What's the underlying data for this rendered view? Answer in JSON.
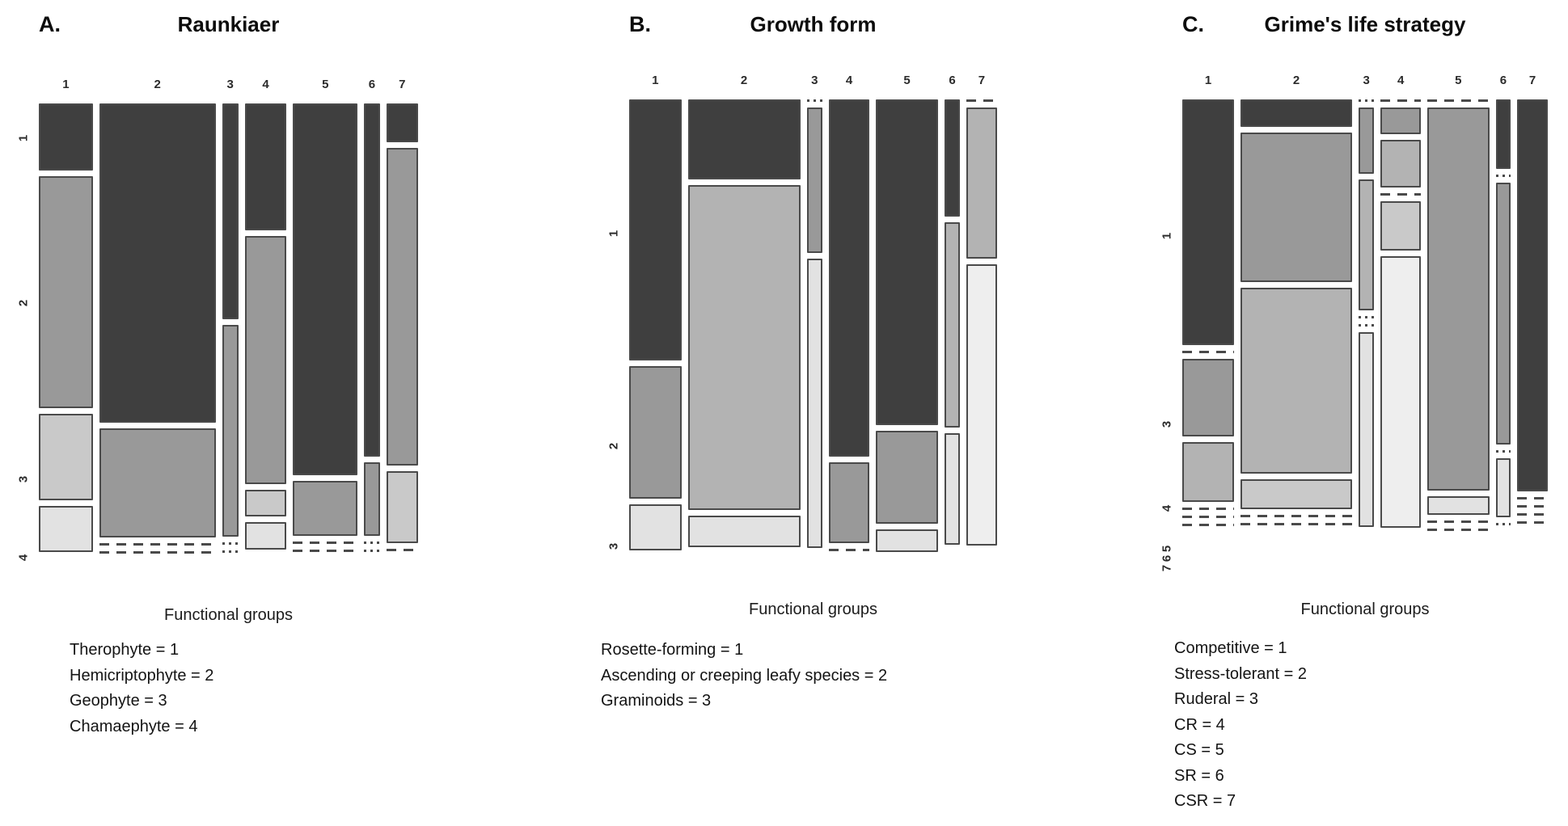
{
  "shade_palette": {
    "d1": "#3f3f3f",
    "g1": "#999999",
    "g2": "#b3b3b3",
    "g3": "#c9c9c9",
    "g4": "#e2e2e2",
    "g5": "#eeeeee"
  },
  "line_color": "#4a4a4a",
  "chart_data": [
    {
      "type": "mosaic",
      "panel": "A.",
      "title": "Raunkiaer",
      "xlabel": "Functional groups",
      "x_categories": [
        "1",
        "2",
        "3",
        "4",
        "5",
        "6",
        "7"
      ],
      "col_weights": [
        66,
        142,
        20,
        51,
        79,
        19,
        39
      ],
      "row_labels": [
        {
          "text": "1",
          "y": 0.073
        },
        {
          "text": "2",
          "y": 0.42
        },
        {
          "text": "3",
          "y": 0.79
        },
        {
          "text": "4",
          "y": 0.954
        }
      ],
      "columns": [
        [
          {
            "h": 0.143,
            "s": "d1"
          },
          {
            "h": 0.513,
            "s": "g1"
          },
          {
            "h": 0.187,
            "s": "g3"
          },
          {
            "h": 0.095,
            "s": "g4"
          }
        ],
        [
          {
            "h": 0.705,
            "s": "d1"
          },
          {
            "h": 0.238,
            "s": "g1"
          },
          {
            "z": "dash"
          },
          {
            "z": "dash"
          }
        ],
        [
          {
            "h": 0.474,
            "s": "d1"
          },
          {
            "h": 0.467,
            "s": "g1"
          },
          {
            "z": "dots"
          },
          {
            "z": "dots"
          }
        ],
        [
          {
            "h": 0.278,
            "s": "d1"
          },
          {
            "h": 0.548,
            "s": "g1"
          },
          {
            "h": 0.053,
            "s": "g3"
          },
          {
            "h": 0.054,
            "s": "g4"
          }
        ],
        [
          {
            "h": 0.823,
            "s": "d1"
          },
          {
            "h": 0.115,
            "s": "g1"
          },
          {
            "z": "dash"
          },
          {
            "z": "dash"
          }
        ],
        [
          {
            "h": 0.781,
            "s": "d1"
          },
          {
            "h": 0.158,
            "s": "g1"
          },
          {
            "z": "dots"
          },
          {
            "z": "dots"
          }
        ],
        [
          {
            "h": 0.08,
            "s": "d1"
          },
          {
            "h": 0.703,
            "s": "g1"
          },
          {
            "h": 0.153,
            "s": "g3"
          },
          {
            "z": "dash"
          }
        ]
      ],
      "legend": [
        "Therophyte = 1",
        "Hemicriptophyte = 2",
        "Geophyte = 3",
        "Chamaephyte = 4"
      ]
    },
    {
      "type": "mosaic",
      "panel": "B.",
      "title": "Growth form",
      "xlabel": "Functional groups",
      "x_categories": [
        "1",
        "2",
        "3",
        "4",
        "5",
        "6",
        "7"
      ],
      "col_weights": [
        66,
        142,
        20,
        51,
        79,
        19,
        39
      ],
      "row_labels": [
        {
          "text": "1",
          "y": 0.287
        },
        {
          "text": "2",
          "y": 0.74
        },
        {
          "text": "3",
          "y": 0.953
        }
      ],
      "columns": [
        [
          {
            "h": 0.576,
            "s": "d1"
          },
          {
            "h": 0.288,
            "s": "g1"
          },
          {
            "h": 0.097,
            "s": "g4"
          }
        ],
        [
          {
            "h": 0.172,
            "s": "d1"
          },
          {
            "h": 0.717,
            "s": "g2"
          },
          {
            "h": 0.064,
            "s": "g4"
          }
        ],
        [
          {
            "z": "dots"
          },
          {
            "h": 0.317,
            "s": "g1"
          },
          {
            "h": 0.638,
            "s": "g4"
          }
        ],
        [
          {
            "h": 0.79,
            "s": "d1"
          },
          {
            "h": 0.172,
            "s": "g1"
          },
          {
            "z": "dash"
          }
        ],
        [
          {
            "h": 0.72,
            "s": "d1"
          },
          {
            "h": 0.2,
            "s": "g1"
          },
          {
            "h": 0.043,
            "s": "g4"
          }
        ],
        [
          {
            "h": 0.255,
            "s": "d1"
          },
          {
            "h": 0.45,
            "s": "g2"
          },
          {
            "h": 0.242,
            "s": "g4"
          }
        ],
        [
          {
            "z": "dash"
          },
          {
            "h": 0.33,
            "s": "g2"
          },
          {
            "h": 0.62,
            "s": "g5"
          }
        ]
      ],
      "legend": [
        "Rosette-forming = 1",
        "Ascending or creeping leafy species = 2",
        "Graminoids = 3"
      ]
    },
    {
      "type": "mosaic",
      "panel": "C.",
      "title": "Grime's life strategy",
      "xlabel": "Functional groups",
      "x_categories": [
        "1",
        "2",
        "3",
        "4",
        "5",
        "6",
        "7"
      ],
      "col_weights": [
        66,
        142,
        20,
        51,
        79,
        19,
        39
      ],
      "row_labels": [
        {
          "text": "1",
          "y": 0.287
        },
        {
          "text": "3",
          "y": 0.683
        },
        {
          "text": "4",
          "y": 0.86
        },
        {
          "text": "5",
          "y": 0.945
        },
        {
          "text": "6",
          "y": 0.966
        },
        {
          "text": "7",
          "y": 0.987
        }
      ],
      "columns": [
        [
          {
            "h": 0.575,
            "s": "d1"
          },
          {
            "z": "dash"
          },
          {
            "h": 0.175,
            "s": "g1"
          },
          {
            "h": 0.135,
            "s": "g2"
          },
          {
            "z": "dash"
          },
          {
            "z": "dash"
          },
          {
            "z": "dash"
          }
        ],
        [
          {
            "h": 0.056,
            "s": "d1"
          },
          {
            "h": 0.342,
            "s": "g1"
          },
          {
            "h": 0.425,
            "s": "g2"
          },
          {
            "h": 0.063,
            "s": "g3"
          },
          {
            "z": "dash"
          },
          {
            "z": "dash"
          }
        ],
        [
          {
            "z": "dots"
          },
          {
            "h": 0.146,
            "s": "g1"
          },
          {
            "h": 0.298,
            "s": "g2"
          },
          {
            "z": "dots"
          },
          {
            "z": "dots"
          },
          {
            "h": 0.445,
            "s": "g4"
          }
        ],
        [
          {
            "z": "dash"
          },
          {
            "h": 0.054,
            "s": "g1"
          },
          {
            "h": 0.105,
            "s": "g2"
          },
          {
            "z": "dash"
          },
          {
            "h": 0.107,
            "s": "g3"
          },
          {
            "h": 0.625,
            "s": "g5"
          }
        ],
        [
          {
            "z": "dash"
          },
          {
            "h": 0.865,
            "s": "g1"
          },
          {
            "h": 0.035,
            "s": "g4"
          },
          {
            "z": "dash"
          },
          {
            "z": "dash"
          }
        ],
        [
          {
            "h": 0.155,
            "s": "d1"
          },
          {
            "z": "dots"
          },
          {
            "h": 0.6,
            "s": "g1"
          },
          {
            "z": "dots"
          },
          {
            "h": 0.13,
            "s": "g4"
          },
          {
            "z": "dots"
          }
        ],
        [
          {
            "h": 0.885,
            "s": "d1"
          },
          {
            "z": "dash"
          },
          {
            "z": "dash"
          },
          {
            "z": "dash"
          },
          {
            "z": "dash"
          }
        ]
      ],
      "legend": [
        "Competitive = 1",
        "Stress-tolerant = 2",
        "Ruderal = 3",
        "CR = 4",
        "CS = 5",
        "SR = 6",
        "CSR = 7"
      ]
    }
  ]
}
